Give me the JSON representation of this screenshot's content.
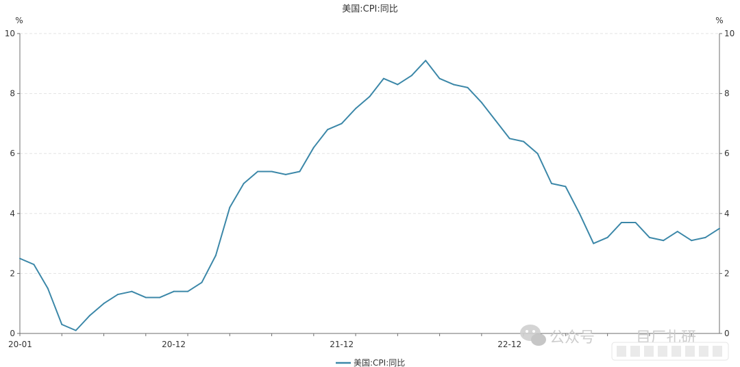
{
  "chart_data": {
    "type": "line",
    "title": "美国:CPI:同比",
    "y_unit_left": "%",
    "y_unit_right": "%",
    "ylim": [
      0,
      10
    ],
    "yticks": [
      0,
      2,
      4,
      6,
      8,
      10
    ],
    "x_tick_labels": [
      "20-01",
      "20-12",
      "21-12",
      "22-12"
    ],
    "x_tick_label_index": [
      0,
      11,
      23,
      35
    ],
    "x_minor_tick_step": 3,
    "legend_position": "bottom-center",
    "grid": "horizontal-dashed",
    "color": "#3b87a8",
    "series": [
      {
        "name": "美国:CPI:同比",
        "values": [
          2.5,
          2.3,
          1.5,
          0.3,
          0.1,
          0.6,
          1.0,
          1.3,
          1.4,
          1.2,
          1.2,
          1.4,
          1.4,
          1.7,
          2.6,
          4.2,
          5.0,
          5.4,
          5.4,
          5.3,
          5.4,
          6.2,
          6.8,
          7.0,
          7.5,
          7.9,
          8.5,
          8.3,
          8.6,
          9.1,
          8.5,
          8.3,
          8.2,
          7.7,
          7.1,
          6.5,
          6.4,
          6.0,
          5.0,
          4.9,
          4.0,
          3.0,
          3.2,
          3.7,
          3.7,
          3.2,
          3.1,
          3.4,
          3.1,
          3.2,
          3.5
        ]
      }
    ]
  },
  "watermark": {
    "left_text": "公众号",
    "right_text": "目厂扎研",
    "icon": "wechat-icon",
    "right_icon": "search-icon"
  }
}
